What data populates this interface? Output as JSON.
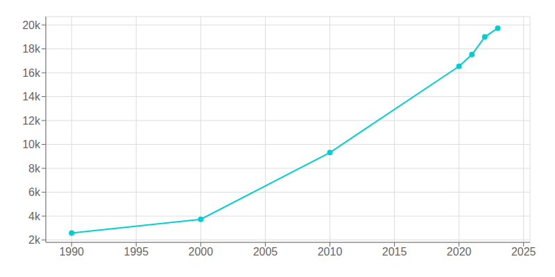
{
  "chart_data": {
    "type": "line",
    "x": [
      1990,
      2000,
      2010,
      2020,
      2021,
      2022,
      2023
    ],
    "values": [
      2583,
      3729,
      9318,
      16541,
      17522,
      19000,
      19736
    ],
    "color": "#00CED1",
    "marker": "circle",
    "xlim": [
      1988,
      2025.5
    ],
    "ylim": [
      1800,
      20700
    ],
    "xticks": [
      1990,
      1995,
      2000,
      2005,
      2010,
      2015,
      2020,
      2025
    ],
    "yticks": [
      {
        "value": 2000,
        "label": "2k"
      },
      {
        "value": 4000,
        "label": "4k"
      },
      {
        "value": 6000,
        "label": "6k"
      },
      {
        "value": 8000,
        "label": "8k"
      },
      {
        "value": 10000,
        "label": "10k"
      },
      {
        "value": 12000,
        "label": "12k"
      },
      {
        "value": 14000,
        "label": "14k"
      },
      {
        "value": 16000,
        "label": "16k"
      },
      {
        "value": 18000,
        "label": "18k"
      },
      {
        "value": 20000,
        "label": "20k"
      }
    ],
    "grid": true
  }
}
